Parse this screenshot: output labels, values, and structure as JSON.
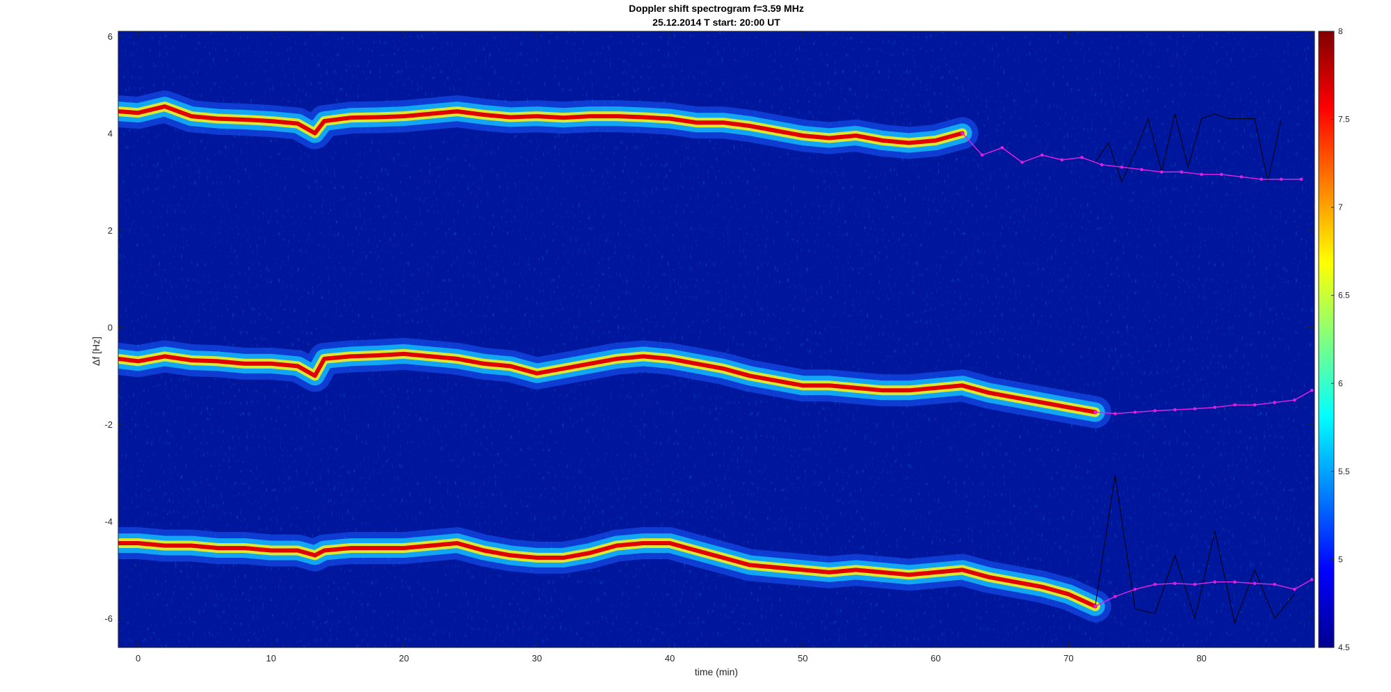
{
  "chart_data": {
    "type": "heatmap",
    "title": "Doppler shift spectrogram f=3.59 MHz",
    "subtitle": "25.12.2014    T start: 20:00 UT",
    "xlabel": "time (min)",
    "ylabel": "Δf [Hz]",
    "xlim": [
      -1.5,
      88.5
    ],
    "ylim": [
      -6.6,
      6.1
    ],
    "x_ticks": [
      0,
      10,
      20,
      30,
      40,
      50,
      60,
      70,
      80
    ],
    "y_ticks": [
      -6,
      -4,
      -2,
      0,
      2,
      4,
      6
    ],
    "colorbar": {
      "colormap": "jet",
      "limits": [
        4.5,
        8
      ],
      "ticks": [
        4.5,
        5,
        5.5,
        6,
        6.5,
        7,
        7.5,
        8
      ]
    },
    "background_color": "#00169c",
    "traces": [
      {
        "t": [
          -1.5,
          0,
          2,
          4,
          6,
          8,
          10,
          12,
          13.3,
          14,
          16,
          18,
          20,
          22,
          24,
          26,
          28,
          30,
          32,
          34,
          36,
          38,
          40,
          42,
          44,
          46,
          48,
          50,
          52,
          54,
          56,
          58,
          60,
          62
        ],
        "f": [
          4.45,
          4.42,
          4.55,
          4.35,
          4.3,
          4.28,
          4.25,
          4.2,
          4.0,
          4.25,
          4.32,
          4.33,
          4.35,
          4.4,
          4.45,
          4.38,
          4.33,
          4.35,
          4.32,
          4.35,
          4.35,
          4.33,
          4.3,
          4.22,
          4.22,
          4.15,
          4.05,
          3.95,
          3.9,
          3.95,
          3.85,
          3.8,
          3.85,
          4.0
        ]
      },
      {
        "t": [
          -1.5,
          0,
          2,
          4,
          6,
          8,
          10,
          12,
          13.3,
          14,
          16,
          18,
          20,
          22,
          24,
          26,
          28,
          30,
          32,
          34,
          36,
          38,
          40,
          42,
          44,
          46,
          48,
          50,
          52,
          54,
          56,
          58,
          60,
          62,
          64,
          66,
          68,
          70,
          72
        ],
        "f": [
          -0.65,
          -0.7,
          -0.6,
          -0.68,
          -0.7,
          -0.75,
          -0.75,
          -0.8,
          -1.0,
          -0.65,
          -0.6,
          -0.58,
          -0.55,
          -0.6,
          -0.65,
          -0.75,
          -0.8,
          -0.95,
          -0.85,
          -0.75,
          -0.65,
          -0.6,
          -0.65,
          -0.75,
          -0.85,
          -1.0,
          -1.1,
          -1.2,
          -1.2,
          -1.25,
          -1.3,
          -1.3,
          -1.25,
          -1.2,
          -1.35,
          -1.45,
          -1.55,
          -1.65,
          -1.75
        ]
      },
      {
        "t": [
          -1.5,
          0,
          2,
          4,
          6,
          8,
          10,
          12,
          13.3,
          14,
          16,
          18,
          20,
          22,
          24,
          26,
          28,
          30,
          32,
          34,
          36,
          38,
          40,
          42,
          44,
          46,
          48,
          50,
          52,
          54,
          56,
          58,
          60,
          62,
          64,
          66,
          68,
          70,
          72
        ],
        "f": [
          -4.45,
          -4.45,
          -4.5,
          -4.5,
          -4.55,
          -4.55,
          -4.6,
          -4.6,
          -4.7,
          -4.6,
          -4.55,
          -4.55,
          -4.55,
          -4.5,
          -4.45,
          -4.6,
          -4.7,
          -4.75,
          -4.75,
          -4.65,
          -4.5,
          -4.45,
          -4.45,
          -4.6,
          -4.75,
          -4.9,
          -4.95,
          -5.0,
          -5.05,
          -5.0,
          -5.05,
          -5.1,
          -5.05,
          -5.0,
          -5.15,
          -5.25,
          -5.35,
          -5.5,
          -5.75
        ]
      }
    ],
    "fitted_series": [
      {
        "color": "#e020e0",
        "x": [
          62,
          63.5,
          65,
          66.5,
          68,
          69.5,
          71,
          72.5,
          74,
          75.5,
          77,
          78.5,
          80,
          81.5,
          83,
          84.5,
          86,
          87.5
        ],
        "y": [
          4.0,
          3.55,
          3.7,
          3.4,
          3.55,
          3.45,
          3.5,
          3.35,
          3.3,
          3.25,
          3.2,
          3.2,
          3.15,
          3.15,
          3.1,
          3.05,
          3.05,
          3.05
        ]
      },
      {
        "color": "#e020e0",
        "x": [
          72,
          73.5,
          75,
          76.5,
          78,
          79.5,
          81,
          82.5,
          84,
          85.5,
          87,
          88.3
        ],
        "y": [
          -1.75,
          -1.78,
          -1.75,
          -1.72,
          -1.7,
          -1.68,
          -1.65,
          -1.6,
          -1.6,
          -1.55,
          -1.5,
          -1.3
        ]
      },
      {
        "color": "#e020e0",
        "x": [
          72,
          73.5,
          75,
          76.5,
          78,
          79.5,
          81,
          82.5,
          84,
          85.5,
          87,
          88.3
        ],
        "y": [
          -5.75,
          -5.55,
          -5.4,
          -5.3,
          -5.28,
          -5.3,
          -5.25,
          -5.25,
          -5.28,
          -5.3,
          -5.4,
          -5.2
        ]
      }
    ],
    "black_series": [
      {
        "x": [
          72,
          73,
          74,
          75,
          76,
          77,
          78,
          79,
          80,
          81,
          82,
          83,
          84,
          85,
          86
        ],
        "y": [
          3.4,
          3.8,
          3.0,
          3.6,
          4.3,
          3.2,
          4.4,
          3.3,
          4.3,
          4.4,
          4.3,
          4.3,
          4.3,
          3.0,
          4.3
        ]
      },
      {
        "x": [
          72,
          73.5,
          75,
          76.5,
          78,
          79.5,
          81,
          82.5,
          84,
          85.5,
          87
        ],
        "y": [
          -5.75,
          -3.05,
          -5.8,
          -5.9,
          -4.7,
          -6.0,
          -4.2,
          -6.1,
          -5.0,
          -6.0,
          -5.5
        ]
      }
    ]
  }
}
